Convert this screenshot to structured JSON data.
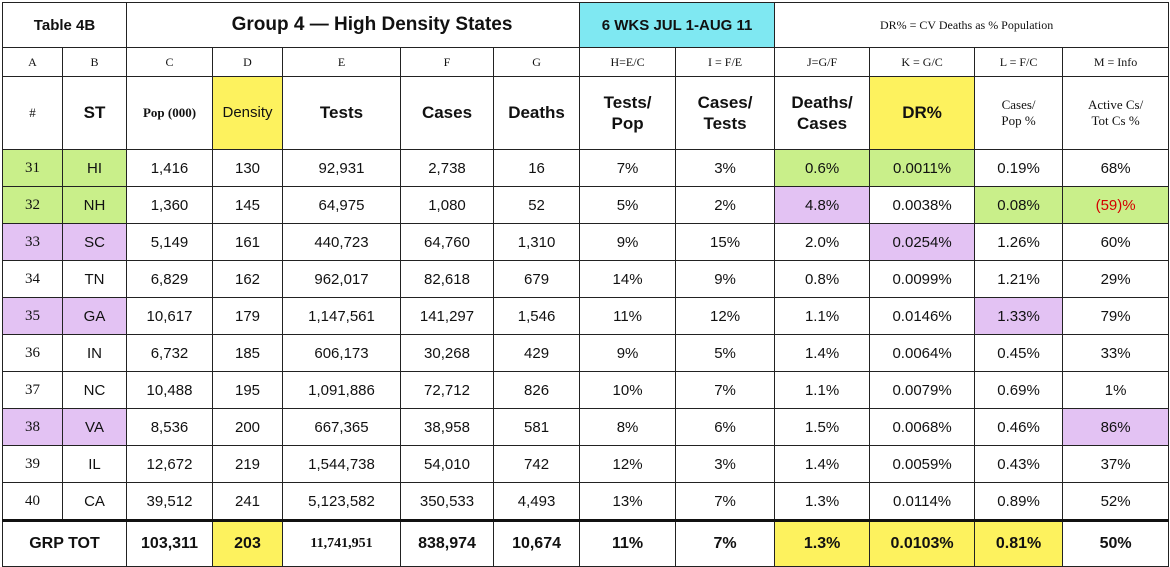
{
  "header": {
    "table_label": "Table 4B",
    "group_title": "Group 4  — High Density States",
    "date_range": "6 WKS JUL 1-AUG 11",
    "note": "DR% = CV Deaths as % Population"
  },
  "column_letters": [
    "A",
    "B",
    "C",
    "D",
    "E",
    "F",
    "G",
    "H=E/C",
    "I = F/E",
    "J=G/F",
    "K = G/C",
    "L = F/C",
    "M = Info"
  ],
  "column_headers": {
    "num": "#",
    "st": "ST",
    "pop": "Pop (000)",
    "density": "Density",
    "tests": "Tests",
    "cases": "Cases",
    "deaths": "Deaths",
    "tests_pop_1": "Tests/",
    "tests_pop_2": "Pop",
    "cases_tests_1": "Cases/",
    "cases_tests_2": "Tests",
    "deaths_cases_1": "Deaths/",
    "deaths_cases_2": "Cases",
    "dr": "DR%",
    "cases_pop_1": "Cases/",
    "cases_pop_2": "Pop %",
    "active_1": "Active Cs/",
    "active_2": "Tot Cs %"
  },
  "rows": [
    {
      "num": "31",
      "st": "HI",
      "pop": "1,416",
      "density": "130",
      "tests": "92,931",
      "cases": "2,738",
      "deaths": "16",
      "tests_pop": "7%",
      "cases_tests": "3%",
      "deaths_cases": "0.6%",
      "dr": "0.0011%",
      "cases_pop": "0.19%",
      "active": "68%"
    },
    {
      "num": "32",
      "st": "NH",
      "pop": "1,360",
      "density": "145",
      "tests": "64,975",
      "cases": "1,080",
      "deaths": "52",
      "tests_pop": "5%",
      "cases_tests": "2%",
      "deaths_cases": "4.8%",
      "dr": "0.0038%",
      "cases_pop": "0.08%",
      "active": "(59)%"
    },
    {
      "num": "33",
      "st": "SC",
      "pop": "5,149",
      "density": "161",
      "tests": "440,723",
      "cases": "64,760",
      "deaths": "1,310",
      "tests_pop": "9%",
      "cases_tests": "15%",
      "deaths_cases": "2.0%",
      "dr": "0.0254%",
      "cases_pop": "1.26%",
      "active": "60%"
    },
    {
      "num": "34",
      "st": "TN",
      "pop": "6,829",
      "density": "162",
      "tests": "962,017",
      "cases": "82,618",
      "deaths": "679",
      "tests_pop": "14%",
      "cases_tests": "9%",
      "deaths_cases": "0.8%",
      "dr": "0.0099%",
      "cases_pop": "1.21%",
      "active": "29%"
    },
    {
      "num": "35",
      "st": "GA",
      "pop": "10,617",
      "density": "179",
      "tests": "1,147,561",
      "cases": "141,297",
      "deaths": "1,546",
      "tests_pop": "11%",
      "cases_tests": "12%",
      "deaths_cases": "1.1%",
      "dr": "0.0146%",
      "cases_pop": "1.33%",
      "active": "79%"
    },
    {
      "num": "36",
      "st": "IN",
      "pop": "6,732",
      "density": "185",
      "tests": "606,173",
      "cases": "30,268",
      "deaths": "429",
      "tests_pop": "9%",
      "cases_tests": "5%",
      "deaths_cases": "1.4%",
      "dr": "0.0064%",
      "cases_pop": "0.45%",
      "active": "33%"
    },
    {
      "num": "37",
      "st": "NC",
      "pop": "10,488",
      "density": "195",
      "tests": "1,091,886",
      "cases": "72,712",
      "deaths": "826",
      "tests_pop": "10%",
      "cases_tests": "7%",
      "deaths_cases": "1.1%",
      "dr": "0.0079%",
      "cases_pop": "0.69%",
      "active": "1%"
    },
    {
      "num": "38",
      "st": "VA",
      "pop": "8,536",
      "density": "200",
      "tests": "667,365",
      "cases": "38,958",
      "deaths": "581",
      "tests_pop": "8%",
      "cases_tests": "6%",
      "deaths_cases": "1.5%",
      "dr": "0.0068%",
      "cases_pop": "0.46%",
      "active": "86%"
    },
    {
      "num": "39",
      "st": "IL",
      "pop": "12,672",
      "density": "219",
      "tests": "1,544,738",
      "cases": "54,010",
      "deaths": "742",
      "tests_pop": "12%",
      "cases_tests": "3%",
      "deaths_cases": "1.4%",
      "dr": "0.0059%",
      "cases_pop": "0.43%",
      "active": "37%"
    },
    {
      "num": "40",
      "st": "CA",
      "pop": "39,512",
      "density": "241",
      "tests": "5,123,582",
      "cases": "350,533",
      "deaths": "4,493",
      "tests_pop": "13%",
      "cases_tests": "7%",
      "deaths_cases": "1.3%",
      "dr": "0.0114%",
      "cases_pop": "0.89%",
      "active": "52%"
    }
  ],
  "total": {
    "label": "GRP TOT",
    "pop": "103,311",
    "density": "203",
    "tests": "11,741,951",
    "cases": "838,974",
    "deaths": "10,674",
    "tests_pop": "11%",
    "cases_tests": "7%",
    "deaths_cases": "1.3%",
    "dr": "0.0103%",
    "cases_pop": "0.81%",
    "active": "50%"
  },
  "colors": {
    "yellow": "#fdf25e",
    "green": "#c9ef8a",
    "purple": "#e3c2f3",
    "cyan": "#7fe8f2",
    "negative_red": "#d40000"
  }
}
